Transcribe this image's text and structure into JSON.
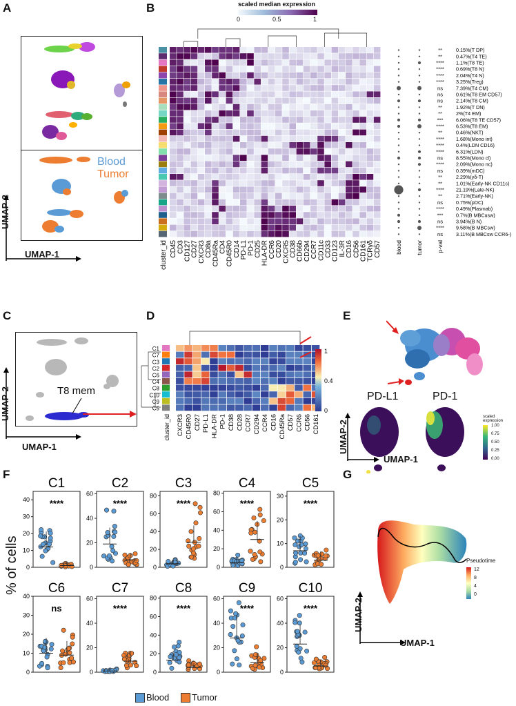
{
  "panels": {
    "A": "A",
    "B": "B",
    "C": "C",
    "D": "D",
    "E": "E",
    "F": "F",
    "G": "G"
  },
  "colors": {
    "blood": "#5b9bd5",
    "tumor": "#ed7d31",
    "heat_low": "#f4fafd",
    "heat_high": "#4d004b",
    "d_low": "#2d3a93",
    "d_high": "#b0102a"
  },
  "panelA": {
    "legend_blood": "Blood",
    "legend_tumor": "Tumor",
    "xlabel": "UMAP-1",
    "ylabel": "UMAP-2"
  },
  "panelB": {
    "colorbar_title": "scaled median expression",
    "colorbar_ticks": [
      "0",
      "0.5",
      "1"
    ],
    "row_header": "cluster_id",
    "markers": [
      "CD45",
      "CD3",
      "CD127",
      "CD27",
      "CXCR3",
      "CD8a",
      "CD45Ra",
      "CD4",
      "CD45R0",
      "CD14",
      "PD-L1",
      "PD-1",
      "CD25",
      "HLA-DR",
      "CCR6",
      "CD20",
      "CXCR5",
      "CD38",
      "CD66b",
      "CD294",
      "CCR7",
      "CD11c",
      "CD33",
      "CD123",
      "IL-3R",
      "CD16",
      "CD56",
      "CD161",
      "TCRγδ",
      "CD57"
    ],
    "dot_headers": [
      "blood",
      "tumor",
      "p-val"
    ],
    "clusters": [
      {
        "sig": "**",
        "label": "0.15%(T DP)"
      },
      {
        "sig": "**",
        "label": "0.47%(T4 TE)"
      },
      {
        "sig": "****",
        "label": "1.1%(T8 TE)"
      },
      {
        "sig": "****",
        "label": "0.69%(T8 N)"
      },
      {
        "sig": "****",
        "label": "2.04%(T4 N)"
      },
      {
        "sig": "****",
        "label": "3.25%(Treg)"
      },
      {
        "sig": "ns",
        "label": "7.39%(T4 CM)"
      },
      {
        "sig": "ns",
        "label": "0.61%(T8 EM CD57)"
      },
      {
        "sig": "ns",
        "label": "2.14%(T8 CM)"
      },
      {
        "sig": "**",
        "label": "1.92%(T DN)"
      },
      {
        "sig": "**",
        "label": "2%(T4 EM)"
      },
      {
        "sig": "***",
        "label": "6.06%(T8 TE CD57)"
      },
      {
        "sig": "****",
        "label": "6.53%(T8 EM)"
      },
      {
        "sig": "**",
        "label": "0.46%(NKT)"
      },
      {
        "sig": "****",
        "label": "1.68%(Mono int)"
      },
      {
        "sig": "****",
        "label": "0.4%(LDN CD16)"
      },
      {
        "sig": "****",
        "label": "6.31%(LDN)"
      },
      {
        "sig": "ns",
        "label": "8.55%(Mono cl)"
      },
      {
        "sig": "****",
        "label": "2.09%(Mono nc)"
      },
      {
        "sig": "ns",
        "label": "0.39%(mDC)"
      },
      {
        "sig": "**",
        "label": "2.29%(γδ-T)"
      },
      {
        "sig": "**",
        "label": "1.01%(Early-NK CD11c)"
      },
      {
        "sig": "****",
        "label": "21.19%(Late-NK)"
      },
      {
        "sig": "**",
        "label": "2.71%(Early-NK)"
      },
      {
        "sig": "ns",
        "label": "0.75%(pDC)"
      },
      {
        "sig": "****",
        "label": "0.49%(Plasmab)"
      },
      {
        "sig": "***",
        "label": "0.7%(B MBCusw)"
      },
      {
        "sig": "ns",
        "label": "3.94%(B N)"
      },
      {
        "sig": "****",
        "label": "9.58%(B MBCsw)"
      },
      {
        "sig": "ns",
        "label": "3.11%(B MBCsw CCR6-)"
      }
    ],
    "blood_dot_sizes": [
      1,
      1,
      1,
      1,
      1,
      1,
      3,
      1,
      2,
      1,
      1,
      2,
      2,
      1,
      1,
      1,
      1,
      2,
      1,
      1,
      1,
      1,
      7,
      1,
      1,
      1,
      2,
      2,
      1,
      1
    ],
    "tumor_dot_sizes": [
      1,
      1,
      2,
      1,
      1,
      1,
      3,
      1,
      2,
      1,
      1,
      2,
      3,
      1,
      1,
      1,
      2,
      2,
      2,
      1,
      1,
      1,
      2,
      1,
      1,
      1,
      1,
      2,
      3,
      1
    ]
  },
  "panelC": {
    "annotation": "T8 mem",
    "xlabel": "UMAP-1",
    "ylabel": "UMAP-2"
  },
  "panelD": {
    "row_header": "cluster_id",
    "clusters": [
      "C1",
      "C7",
      "C3",
      "C2",
      "C6",
      "C4",
      "C8",
      "C10",
      "C9",
      "C5"
    ],
    "markers": [
      "CXCR3",
      "CD45R0",
      "CD27",
      "PD-L1",
      "HLA-DR",
      "PD-1",
      "CD38",
      "CD28",
      "CCR7",
      "CD294",
      "CCR4",
      "CD16",
      "CD45Ra",
      "CD57",
      "CCR6",
      "CD56",
      "CD161"
    ],
    "colorbar_ticks": [
      "1",
      "0.4",
      "0"
    ]
  },
  "panelE": {
    "title_left": "PD-L1",
    "title_right": "PD-1",
    "legend_title": "scaled expression",
    "legend_ticks": [
      "1.00",
      "0.75",
      "0.50",
      "0.25",
      "0.00"
    ],
    "xlabel": "UMAP-1",
    "ylabel": "UMAP-2"
  },
  "panelF": {
    "ylabel": "% of cells",
    "legend_blood": "Blood",
    "legend_tumor": "Tumor",
    "plots": [
      {
        "title": "C1",
        "sig": "****",
        "yticks": [
          "0",
          "10",
          "20",
          "30",
          "40"
        ],
        "ymax": 45,
        "blood_mean": 12,
        "tumor_mean": 1
      },
      {
        "title": "C2",
        "sig": "****",
        "yticks": [
          "0",
          "20",
          "40",
          "60"
        ],
        "ymax": 62,
        "blood_mean": 19,
        "tumor_mean": 6
      },
      {
        "title": "C3",
        "sig": "****",
        "yticks": [
          "0",
          "20",
          "40",
          "60",
          "80"
        ],
        "ymax": 85,
        "blood_mean": 4,
        "tumor_mean": 28
      },
      {
        "title": "C4",
        "sig": "****",
        "yticks": [
          "0",
          "20",
          "40",
          "60",
          "80"
        ],
        "ymax": 82,
        "blood_mean": 5,
        "tumor_mean": 30
      },
      {
        "title": "C5",
        "sig": "****",
        "yticks": [
          "0",
          "10",
          "20",
          "30"
        ],
        "ymax": 32,
        "blood_mean": 7,
        "tumor_mean": 3
      },
      {
        "title": "C6",
        "sig": "ns",
        "yticks": [
          "0",
          "10",
          "20",
          "30",
          "40"
        ],
        "ymax": 40,
        "blood_mean": 10,
        "tumor_mean": 9
      },
      {
        "title": "C7",
        "sig": "****",
        "yticks": [
          "0",
          "20",
          "40",
          "60"
        ],
        "ymax": 62,
        "blood_mean": 1,
        "tumor_mean": 9
      },
      {
        "title": "C8",
        "sig": "****",
        "yticks": [
          "0",
          "20",
          "40",
          "60",
          "80"
        ],
        "ymax": 82,
        "blood_mean": 13,
        "tumor_mean": 5
      },
      {
        "title": "C9",
        "sig": "****",
        "yticks": [
          "0",
          "20",
          "40",
          "60"
        ],
        "ymax": 62,
        "blood_mean": 28,
        "tumor_mean": 8
      },
      {
        "title": "C10",
        "sig": "****",
        "yticks": [
          "0",
          "20",
          "40",
          "60"
        ],
        "ymax": 62,
        "blood_mean": 23,
        "tumor_mean": 5
      }
    ]
  },
  "panelG": {
    "legend_title": "Pseudotime",
    "legend_ticks": [
      "12",
      "8",
      "4",
      "0"
    ],
    "xlabel": "UMAP-1",
    "ylabel": "UMAP-2"
  }
}
